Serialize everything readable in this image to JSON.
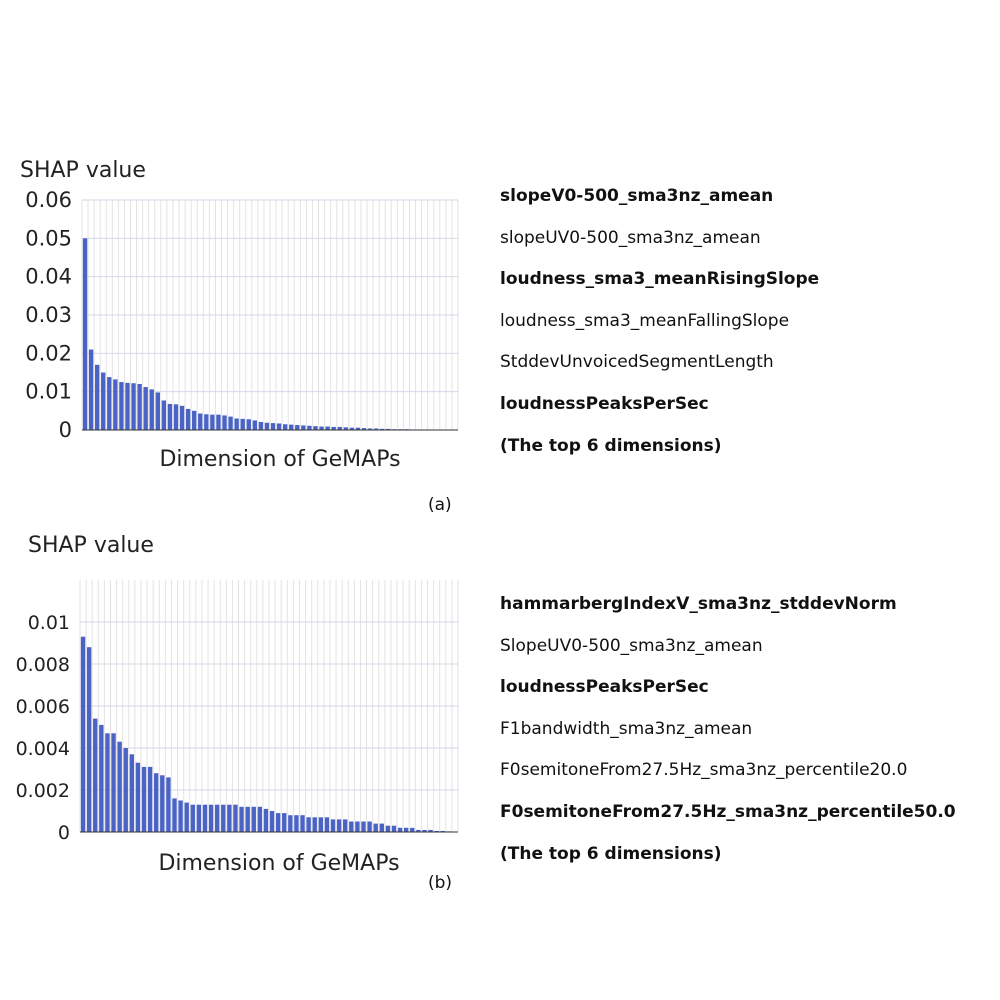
{
  "chart_data": [
    {
      "type": "bar",
      "panel_label": "(a)",
      "ylabel": "SHAP value",
      "xlabel": "Dimension of GeMAPs",
      "ylim": [
        0,
        0.06
      ],
      "yticks": [
        "0.06",
        "0.05",
        "0.04",
        "0.03",
        "0.02",
        "0.01",
        "0"
      ],
      "ytick_values": [
        0.06,
        0.05,
        0.04,
        0.03,
        0.02,
        0.01,
        0
      ],
      "grid": true,
      "bar_color": "#4a63c5",
      "values": [
        0.05,
        0.021,
        0.017,
        0.015,
        0.0138,
        0.0132,
        0.0125,
        0.0123,
        0.0122,
        0.012,
        0.0112,
        0.0106,
        0.0098,
        0.0077,
        0.0068,
        0.0067,
        0.0063,
        0.0055,
        0.005,
        0.0043,
        0.0041,
        0.004,
        0.004,
        0.0038,
        0.0035,
        0.003,
        0.0029,
        0.0028,
        0.0025,
        0.0021,
        0.0019,
        0.0018,
        0.0017,
        0.0015,
        0.0014,
        0.0013,
        0.0012,
        0.0011,
        0.001,
        0.0009,
        0.0009,
        0.0008,
        0.0008,
        0.0007,
        0.0006,
        0.0006,
        0.0005,
        0.0004,
        0.0004,
        0.0003,
        0.0003,
        0.0002,
        0.0002,
        0.0002,
        0.0001,
        0.0001,
        0.0001,
        0.0001,
        5e-05,
        5e-05,
        3e-05,
        2e-05
      ],
      "top_features": [
        {
          "text": "slopeV0-500_sma3nz_amean",
          "bold": true
        },
        {
          "text": "slopeUV0-500_sma3nz_amean",
          "bold": false
        },
        {
          "text": "loudness_sma3_meanRisingSlope",
          "bold": true
        },
        {
          "text": "loudness_sma3_meanFallingSlope",
          "bold": false
        },
        {
          "text": "StddevUnvoicedSegmentLength",
          "bold": false
        },
        {
          "text": "loudnessPeaksPerSec",
          "bold": true
        }
      ],
      "caption": "(The top 6 dimensions)"
    },
    {
      "type": "bar",
      "panel_label": "(b)",
      "ylabel": "SHAP value",
      "xlabel": "Dimension of GeMAPs",
      "ylim": [
        0,
        0.012
      ],
      "yticks": [
        "0.01",
        "0.008",
        "0.006",
        "0.004",
        "0.002",
        "0"
      ],
      "ytick_values": [
        0.01,
        0.008,
        0.006,
        0.004,
        0.002,
        0
      ],
      "grid": true,
      "bar_color": "#4a63c5",
      "values": [
        0.0093,
        0.0088,
        0.0054,
        0.0051,
        0.0047,
        0.0047,
        0.0043,
        0.004,
        0.0037,
        0.0033,
        0.0031,
        0.0031,
        0.0028,
        0.0027,
        0.0026,
        0.0016,
        0.0015,
        0.0014,
        0.0013,
        0.0013,
        0.0013,
        0.0013,
        0.0013,
        0.0013,
        0.0013,
        0.0013,
        0.0012,
        0.0012,
        0.0012,
        0.0012,
        0.0011,
        0.001,
        0.0009,
        0.0009,
        0.0008,
        0.0008,
        0.0008,
        0.0007,
        0.0007,
        0.0007,
        0.0007,
        0.0006,
        0.0006,
        0.0006,
        0.0005,
        0.0005,
        0.0005,
        0.0005,
        0.0004,
        0.0004,
        0.0003,
        0.0003,
        0.0002,
        0.0002,
        0.0002,
        0.0001,
        0.0001,
        0.0001,
        5e-05,
        5e-05,
        3e-05,
        2e-05
      ],
      "top_features": [
        {
          "text": "hammarbergIndexV_sma3nz_stddevNorm",
          "bold": true
        },
        {
          "text": "SlopeUV0-500_sma3nz_amean",
          "bold": false
        },
        {
          "text": "loudnessPeaksPerSec",
          "bold": true
        },
        {
          "text": "F1bandwidth_sma3nz_amean",
          "bold": false
        },
        {
          "text": "F0semitoneFrom27.5Hz_sma3nz_percentile20.0",
          "bold": false
        },
        {
          "text": "F0semitoneFrom27.5Hz_sma3nz_percentile50.0",
          "bold": true
        }
      ],
      "caption": "(The top 6 dimensions)"
    }
  ]
}
